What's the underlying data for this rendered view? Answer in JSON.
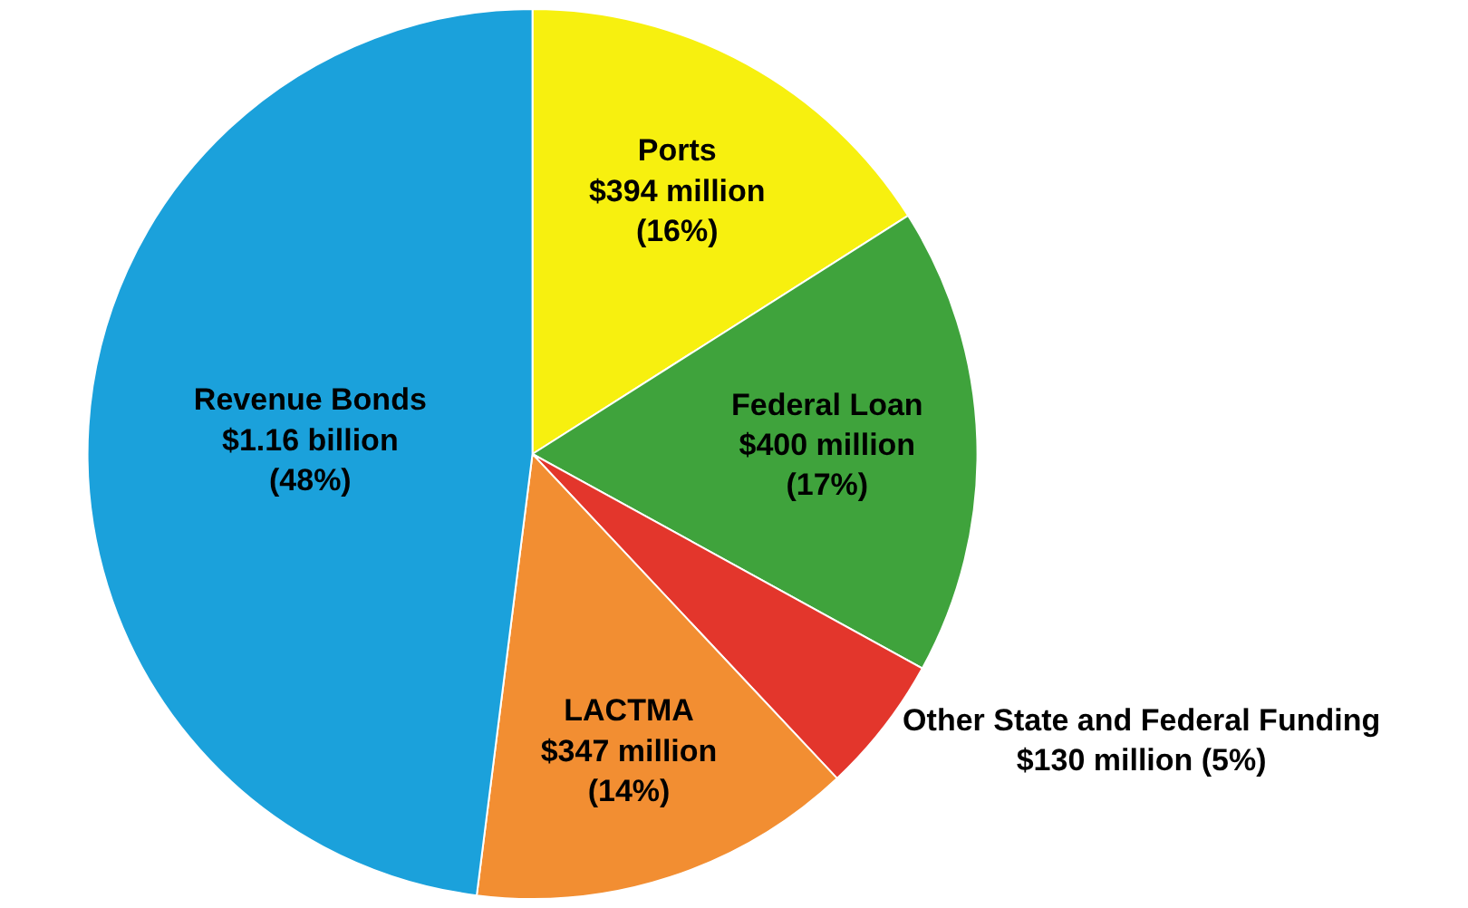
{
  "chart_data": {
    "type": "pie",
    "categories": [
      "Ports",
      "Federal Loan",
      "Other State and Federal Funding",
      "LACTMA",
      "Revenue Bonds"
    ],
    "values": [
      16,
      17,
      5,
      14,
      48
    ],
    "colors": [
      "#f7f00f",
      "#3fa33c",
      "#e3362c",
      "#f28e32",
      "#1ba1db"
    ],
    "value_labels": [
      "$394 million\n(16%)",
      "$400 million\n(17%)",
      "$130 million (5%)",
      "$347 million\n(14%)",
      "$1.16 billion\n(48%)"
    ],
    "legend": false
  }
}
